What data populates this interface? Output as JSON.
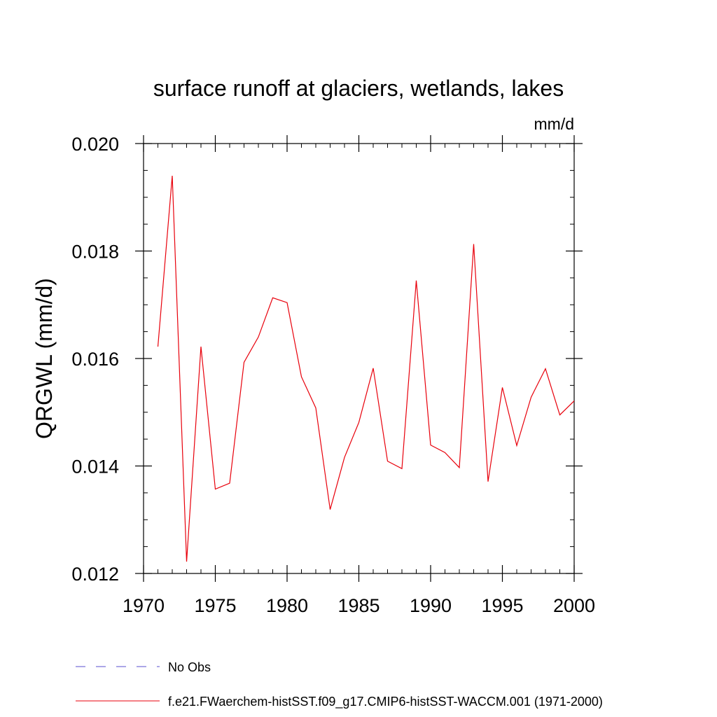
{
  "chart_data": {
    "type": "line",
    "title": "surface runoff at glaciers, wetlands, lakes",
    "units_label": "mm/d",
    "ylabel": "QRGWL  (mm/d)",
    "xlabel": "",
    "xlim": [
      1970,
      2000
    ],
    "ylim": [
      0.012,
      0.02
    ],
    "x_ticks": [
      1970,
      1975,
      1980,
      1985,
      1990,
      1995,
      2000
    ],
    "x_tick_labels": [
      "1970",
      "1975",
      "1980",
      "1985",
      "1990",
      "1995",
      "2000"
    ],
    "y_ticks": [
      0.012,
      0.014,
      0.016,
      0.018,
      0.02
    ],
    "y_tick_labels": [
      "0.012",
      "0.014",
      "0.016",
      "0.018",
      "0.020"
    ],
    "grid": false,
    "legend_position": "bottom-left",
    "series": [
      {
        "name": "No Obs",
        "color": "#5a4fcf",
        "dash": "dashed",
        "x": [],
        "y": []
      },
      {
        "name": "f.e21.FWaerchem-histSST.f09_g17.CMIP6-histSST-WACCM.001 (1971-2000)",
        "color": "#e8000b",
        "dash": "solid",
        "x": [
          1971,
          1972,
          1973,
          1974,
          1975,
          1976,
          1977,
          1978,
          1979,
          1980,
          1981,
          1982,
          1983,
          1984,
          1985,
          1986,
          1987,
          1988,
          1989,
          1990,
          1991,
          1992,
          1993,
          1994,
          1995,
          1996,
          1997,
          1998,
          1999,
          2000
        ],
        "y": [
          0.01622,
          0.0194,
          0.01222,
          0.01622,
          0.01357,
          0.01368,
          0.01593,
          0.0164,
          0.01713,
          0.01704,
          0.01566,
          0.01508,
          0.01319,
          0.01416,
          0.01481,
          0.01582,
          0.01409,
          0.01395,
          0.01745,
          0.01439,
          0.01425,
          0.01397,
          0.01813,
          0.01371,
          0.01546,
          0.01438,
          0.01528,
          0.01581,
          0.01495,
          0.01521
        ]
      }
    ]
  }
}
